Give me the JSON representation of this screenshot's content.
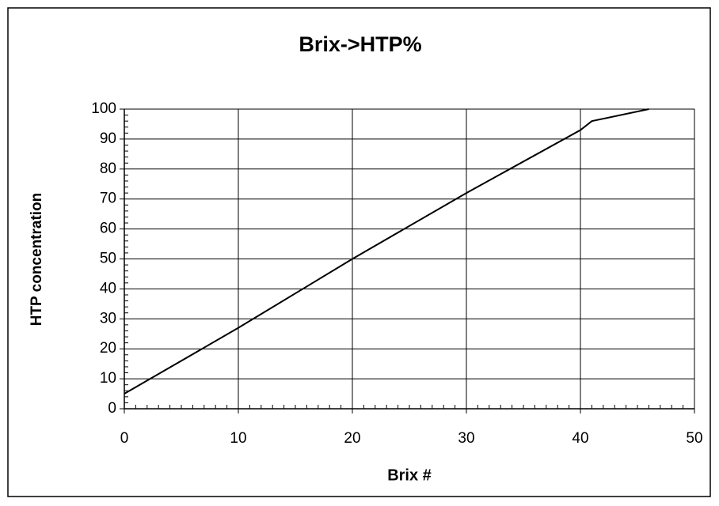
{
  "chart_data": {
    "type": "line",
    "title": "Brix->HTP%",
    "x_label": "Brix #",
    "y_label": "HTP concentration",
    "x": [
      0,
      10,
      20,
      30,
      40,
      41,
      46
    ],
    "values": [
      5,
      27,
      50,
      72,
      93,
      96,
      100
    ],
    "color": "#000000",
    "xlim": [
      0,
      50
    ],
    "xticks": [
      0,
      10,
      20,
      30,
      40,
      50
    ],
    "ylim": [
      0,
      100
    ],
    "yticks": [
      0,
      10,
      20,
      30,
      40,
      50,
      60,
      70,
      80,
      90,
      100
    ],
    "grid": true
  }
}
